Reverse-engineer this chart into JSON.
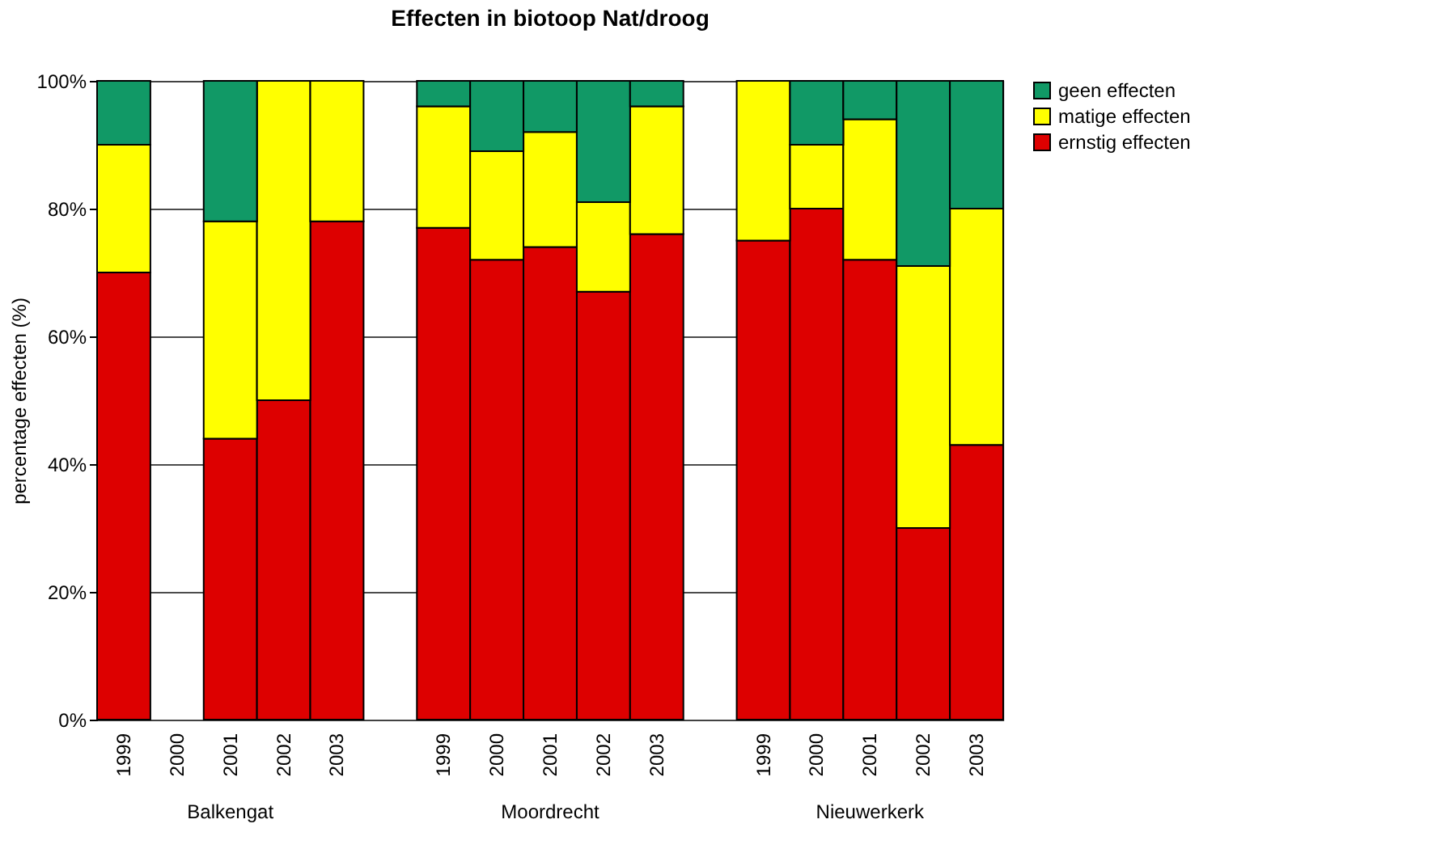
{
  "chart_data": {
    "type": "bar",
    "stacked": true,
    "title": "Effecten in biotoop Nat/droog",
    "ylabel": "percentage effecten (%)",
    "categories": [
      "1999",
      "2000",
      "2001",
      "2002",
      "2003",
      null,
      "1999",
      "2000",
      "2001",
      "2002",
      "2003",
      null,
      "1999",
      "2000",
      "2001",
      "2002",
      "2003"
    ],
    "series": [
      {
        "name": "ernstig effecten",
        "color": "#dd0000",
        "values": [
          70,
          null,
          44,
          50,
          78,
          null,
          77,
          72,
          74,
          67,
          76,
          null,
          75,
          80,
          72,
          30,
          43
        ]
      },
      {
        "name": "matige effecten",
        "color": "#ffff00",
        "values": [
          20,
          null,
          34,
          50,
          22,
          null,
          19,
          17,
          18,
          14,
          20,
          null,
          25,
          10,
          22,
          41,
          37
        ]
      },
      {
        "name": "geen effecten",
        "color": "#119966",
        "values": [
          10,
          null,
          22,
          0,
          0,
          null,
          4,
          11,
          8,
          19,
          4,
          null,
          0,
          10,
          6,
          29,
          20
        ]
      }
    ],
    "annotations": [
      "Balkengat",
      "Moordrecht",
      "Nieuwerkerk"
    ],
    "ylim": [
      0,
      100
    ],
    "yticks": [
      {
        "value": 0,
        "label": "0%"
      },
      {
        "value": 20,
        "label": "20%"
      },
      {
        "value": 40,
        "label": "40%"
      },
      {
        "value": 60,
        "label": "60%"
      },
      {
        "value": 80,
        "label": "80%"
      },
      {
        "value": 100,
        "label": "100%"
      }
    ],
    "grid": "y",
    "legend": "top right"
  }
}
